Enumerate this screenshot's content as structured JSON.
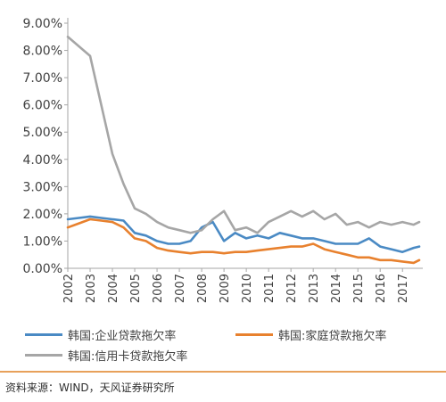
{
  "chart_data": {
    "type": "line",
    "title": "",
    "xlabel": "",
    "ylabel": "",
    "ylim": [
      0,
      9
    ],
    "y_ticks": [
      "0.00%",
      "1.00%",
      "2.00%",
      "3.00%",
      "4.00%",
      "5.00%",
      "6.00%",
      "7.00%",
      "8.00%",
      "9.00%"
    ],
    "x_tick_labels": [
      "2002",
      "2003",
      "2004",
      "2005",
      "2006",
      "2007",
      "2008",
      "2009",
      "2010",
      "2011",
      "2012",
      "2013",
      "2014",
      "2015",
      "2016",
      "2017"
    ],
    "x_range": [
      2002.0,
      2017.75
    ],
    "grid": false,
    "legend_position": "bottom",
    "series": [
      {
        "name": "韩国:企业贷款拖欠率",
        "color": "#4a8ac4",
        "x": [
          2002.0,
          2002.5,
          2003.0,
          2003.5,
          2004.0,
          2004.5,
          2005.0,
          2005.5,
          2006.0,
          2006.5,
          2007.0,
          2007.5,
          2008.0,
          2008.5,
          2009.0,
          2009.5,
          2010.0,
          2010.5,
          2011.0,
          2011.5,
          2012.0,
          2012.5,
          2013.0,
          2013.5,
          2014.0,
          2014.5,
          2015.0,
          2015.5,
          2016.0,
          2016.5,
          2017.0,
          2017.5,
          2017.75
        ],
        "values": [
          1.8,
          1.85,
          1.9,
          1.85,
          1.8,
          1.75,
          1.3,
          1.2,
          1.0,
          0.9,
          0.9,
          1.0,
          1.5,
          1.7,
          1.0,
          1.3,
          1.1,
          1.2,
          1.1,
          1.3,
          1.2,
          1.1,
          1.1,
          1.0,
          0.9,
          0.9,
          0.9,
          1.1,
          0.8,
          0.7,
          0.6,
          0.75,
          0.8
        ]
      },
      {
        "name": "韩国:家庭贷款拖欠率",
        "color": "#e8812e",
        "x": [
          2002.0,
          2002.5,
          2003.0,
          2003.5,
          2004.0,
          2004.5,
          2005.0,
          2005.5,
          2006.0,
          2006.5,
          2007.0,
          2007.5,
          2008.0,
          2008.5,
          2009.0,
          2009.5,
          2010.0,
          2010.5,
          2011.0,
          2011.5,
          2012.0,
          2012.5,
          2013.0,
          2013.5,
          2014.0,
          2014.5,
          2015.0,
          2015.5,
          2016.0,
          2016.5,
          2017.0,
          2017.5,
          2017.75
        ],
        "values": [
          1.5,
          1.65,
          1.8,
          1.75,
          1.7,
          1.5,
          1.1,
          1.0,
          0.75,
          0.65,
          0.6,
          0.55,
          0.6,
          0.6,
          0.55,
          0.6,
          0.6,
          0.65,
          0.7,
          0.75,
          0.8,
          0.8,
          0.9,
          0.7,
          0.6,
          0.5,
          0.4,
          0.4,
          0.3,
          0.3,
          0.25,
          0.2,
          0.3
        ]
      },
      {
        "name": "韩国:信用卡贷款拖欠率",
        "color": "#a6a6a6",
        "x": [
          2002.0,
          2002.5,
          2003.0,
          2003.5,
          2004.0,
          2004.5,
          2005.0,
          2005.5,
          2006.0,
          2006.5,
          2007.0,
          2007.5,
          2008.0,
          2008.5,
          2009.0,
          2009.5,
          2010.0,
          2010.5,
          2011.0,
          2011.5,
          2012.0,
          2012.5,
          2013.0,
          2013.5,
          2014.0,
          2014.5,
          2015.0,
          2015.5,
          2016.0,
          2016.5,
          2017.0,
          2017.5,
          2017.75
        ],
        "values": [
          8.5,
          8.15,
          7.8,
          6.0,
          4.2,
          3.1,
          2.2,
          2.0,
          1.7,
          1.5,
          1.4,
          1.3,
          1.4,
          1.8,
          2.1,
          1.4,
          1.5,
          1.3,
          1.7,
          1.9,
          2.1,
          1.9,
          2.1,
          1.8,
          2.0,
          1.6,
          1.7,
          1.5,
          1.7,
          1.6,
          1.7,
          1.6,
          1.7
        ]
      }
    ]
  },
  "source_text": "资料来源：WIND，天风证券研究所"
}
